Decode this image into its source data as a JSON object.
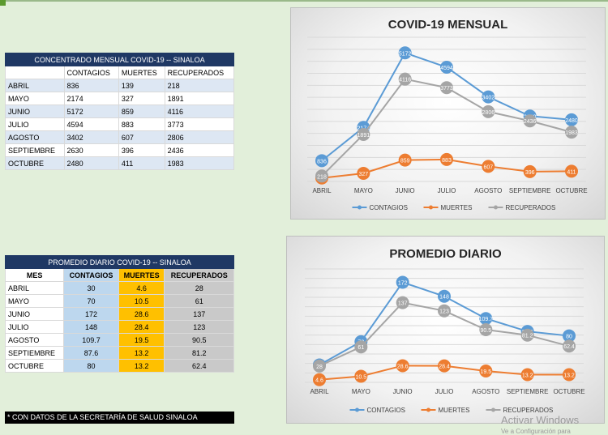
{
  "table1": {
    "title": "CONCENTRADO MENSUAL COVID-19 -- SINALOA",
    "headers": [
      "",
      "CONTAGIOS",
      "MUERTES",
      "RECUPERADOS"
    ],
    "rows": [
      [
        "ABRIL",
        "836",
        "139",
        "218"
      ],
      [
        "MAYO",
        "2174",
        "327",
        "1891"
      ],
      [
        "JUNIO",
        "5172",
        "859",
        "4116"
      ],
      [
        "JULIO",
        "4594",
        "883",
        "3773"
      ],
      [
        "AGOSTO",
        "3402",
        "607",
        "2806"
      ],
      [
        "SEPTIEMBRE",
        "2630",
        "396",
        "2436"
      ],
      [
        "OCTUBRE",
        "2480",
        "411",
        "1983"
      ]
    ]
  },
  "table2": {
    "title": "PROMEDIO DIARIO COVID-19 -- SINALOA",
    "headers": [
      "MES",
      "CONTAGIOS",
      "MUERTES",
      "RECUPERADOS"
    ],
    "rows": [
      [
        "ABRIL",
        "30",
        "4.6",
        "28"
      ],
      [
        "MAYO",
        "70",
        "10.5",
        "61"
      ],
      [
        "JUNIO",
        "172",
        "28.6",
        "137"
      ],
      [
        "JULIO",
        "148",
        "28.4",
        "123"
      ],
      [
        "AGOSTO",
        "109.7",
        "19.5",
        "90.5"
      ],
      [
        "SEPTIEMBRE",
        "87.6",
        "13.2",
        "81.2"
      ],
      [
        "OCTUBRE",
        "80",
        "13.2",
        "62.4"
      ]
    ]
  },
  "note": "* CON DATOS DE LA SECRETARÍA DE SALUD SINALOA",
  "watermark": {
    "line1": "Activar Windows",
    "line2": "Ve a Configuración para"
  },
  "colors": {
    "contagios": "#5b9bd5",
    "muertes": "#ed7d31",
    "recuperados": "#a5a5a5",
    "table_header": "#1f3864"
  },
  "chart_data": [
    {
      "type": "line",
      "title": "COVID-19 MENSUAL",
      "categories": [
        "ABRIL",
        "MAYO",
        "JUNIO",
        "JULIO",
        "AGOSTO",
        "SEPTIEMBRE",
        "OCTUBRE"
      ],
      "series": [
        {
          "name": "CONTAGIOS",
          "values": [
            836,
            2174,
            5172,
            4594,
            3402,
            2630,
            2480
          ]
        },
        {
          "name": "MUERTES",
          "values": [
            139,
            327,
            859,
            883,
            607,
            396,
            411
          ]
        },
        {
          "name": "RECUPERADOS",
          "values": [
            218,
            1891,
            4116,
            3773,
            2806,
            2436,
            1983
          ]
        }
      ],
      "ylim": [
        0,
        5800
      ],
      "grid": true,
      "legend": "bottom"
    },
    {
      "type": "line",
      "title": "PROMEDIO DIARIO",
      "categories": [
        "ABRIL",
        "MAYO",
        "JUNIO",
        "JULIO",
        "AGOSTO",
        "SEPTIEMBRE",
        "OCTUBRE"
      ],
      "series": [
        {
          "name": "CONTAGIOS",
          "values": [
            30,
            70,
            172,
            148,
            109.7,
            87.6,
            80
          ]
        },
        {
          "name": "MUERTES",
          "values": [
            4.6,
            10.5,
            28.6,
            28.4,
            19.5,
            13.2,
            13.2
          ]
        },
        {
          "name": "RECUPERADOS",
          "values": [
            28,
            61,
            137,
            123,
            90.5,
            81.2,
            62.4
          ]
        }
      ],
      "ylim": [
        0,
        195
      ],
      "grid": true,
      "legend": "bottom"
    }
  ]
}
